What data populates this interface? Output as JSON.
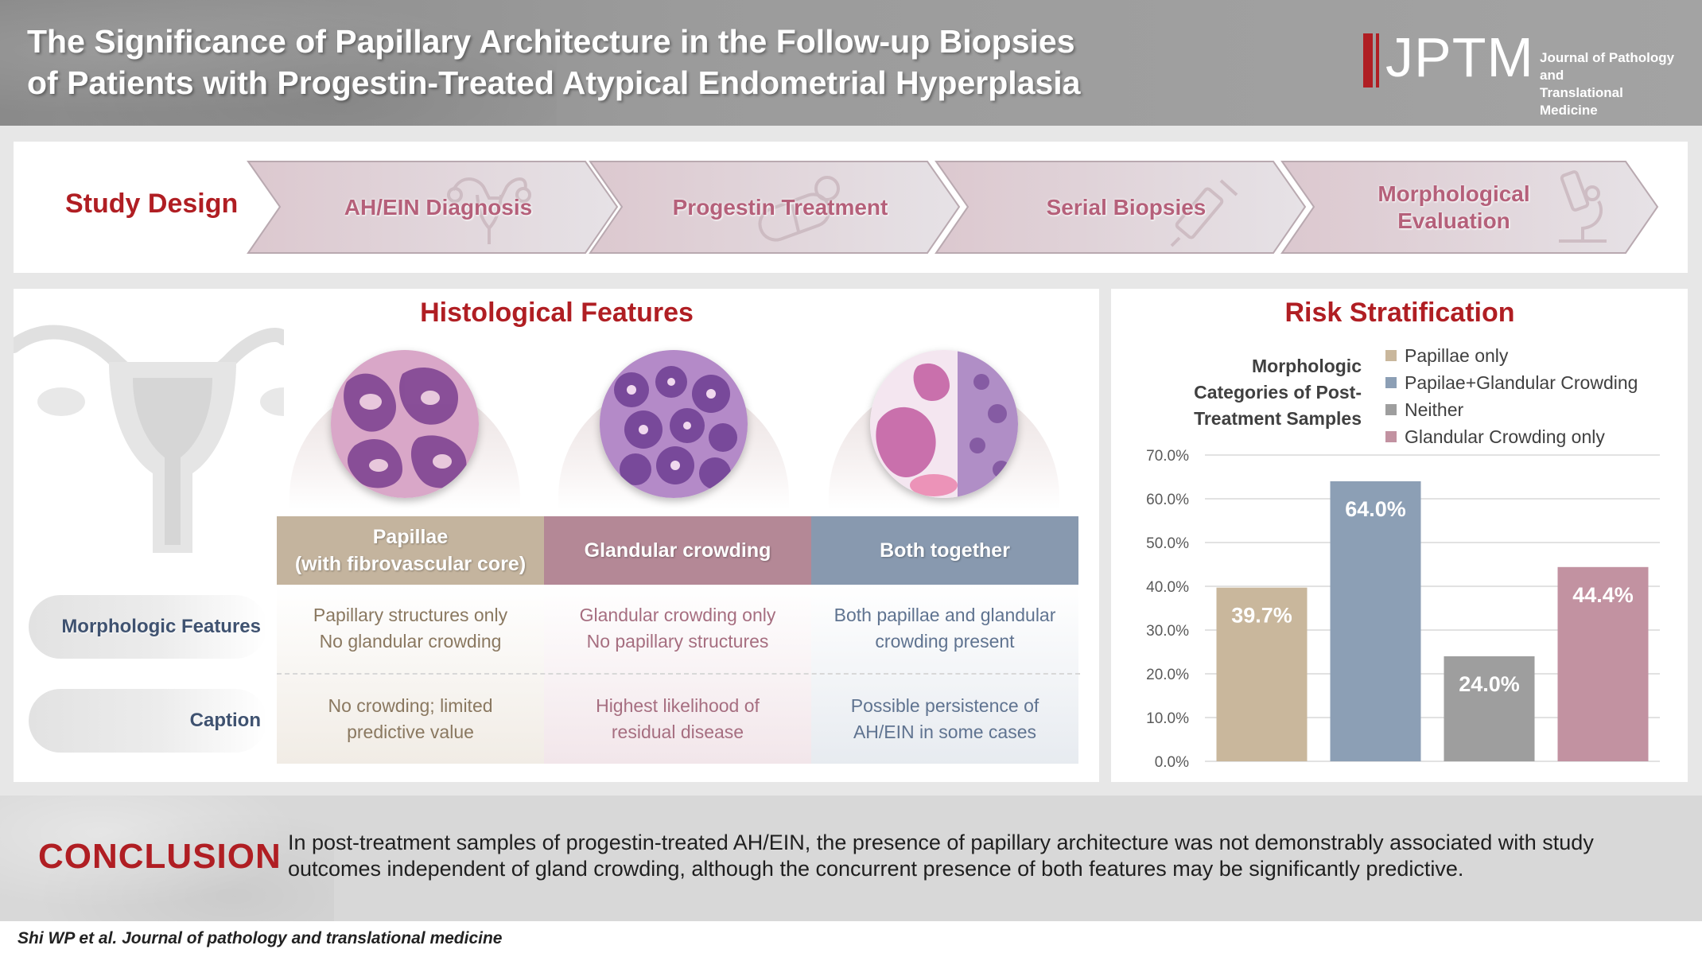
{
  "header": {
    "title_line1": "The Significance of Papillary Architecture in the Follow-up Biopsies",
    "title_line2": "of Patients with Progestin-Treated Atypical Endometrial Hyperplasia",
    "logo_text": "JPTM",
    "logo_sub_line1": "Journal of Pathology and",
    "logo_sub_line2": "Translational Medicine"
  },
  "study_design": {
    "label": "Study Design",
    "steps": [
      {
        "label": "AH/EIN Diagnosis",
        "icon": "uterus-icon"
      },
      {
        "label": "Progestin Treatment",
        "icon": "capsule-icon"
      },
      {
        "label": "Serial Biopsies",
        "icon": "syringe-icon"
      },
      {
        "label": "Morphological Evaluation",
        "icon": "microscope-icon"
      }
    ]
  },
  "histology": {
    "title": "Histological Features",
    "row_labels": [
      "Morphologic Features",
      "Caption"
    ],
    "columns": [
      {
        "header": "Papillae\n(with fibrovascular core)",
        "header_line1": "Papillae",
        "header_line2": "(with fibrovascular core)",
        "features_line1": "Papillary structures only",
        "features_line2": "No glandular crowding",
        "caption_line1": "No crowding; limited",
        "caption_line2": "predictive value",
        "color": "#c4b49e"
      },
      {
        "header": "Glandular crowding",
        "features_line1": "Glandular crowding only",
        "features_line2": "No papillary structures",
        "caption_line1": "Highest likelihood of",
        "caption_line2": "residual disease",
        "color": "#b48896"
      },
      {
        "header": "Both together",
        "features_line1": "Both papillae and glandular",
        "features_line2": "crowding present",
        "caption_line1": "Possible persistence of",
        "caption_line2": "AH/EIN in some cases",
        "color": "#8899af"
      }
    ]
  },
  "risk": {
    "title": "Risk Stratification",
    "chart_title_lines": [
      "Morphologic",
      "Categories of Post-",
      "Treatment Samples"
    ]
  },
  "chart_data": {
    "type": "bar",
    "title": "Morphologic Categories of Post-Treatment Samples",
    "categories": [
      "Papillae only",
      "Papilae+Glandular Crowding",
      "Neither",
      "Glandular Crowding only"
    ],
    "values": [
      39.7,
      64.0,
      24.0,
      44.4
    ],
    "data_labels": [
      "39.7%",
      "64.0%",
      "24.0%",
      "44.4%"
    ],
    "colors": [
      "#c9b79c",
      "#8c9fb5",
      "#9e9e9e",
      "#c292a1"
    ],
    "ylim": [
      0,
      70
    ],
    "yticks": [
      0,
      10,
      20,
      30,
      40,
      50,
      60,
      70
    ],
    "ytick_labels": [
      "0.0%",
      "10.0%",
      "20.0%",
      "30.0%",
      "40.0%",
      "50.0%",
      "60.0%",
      "70.0%"
    ],
    "xlabel": "",
    "ylabel": "",
    "grid": true,
    "legend_position": "top-right"
  },
  "conclusion": {
    "label": "CONCLUSION",
    "text": "In post-treatment samples of progestin-treated AH/EIN, the presence of papillary architecture was not demonstrably associated with study outcomes independent of gland crowding, although the concurrent presence of both features may be significantly predictive."
  },
  "citation": "Shi WP et al. Journal of pathology and translational medicine"
}
